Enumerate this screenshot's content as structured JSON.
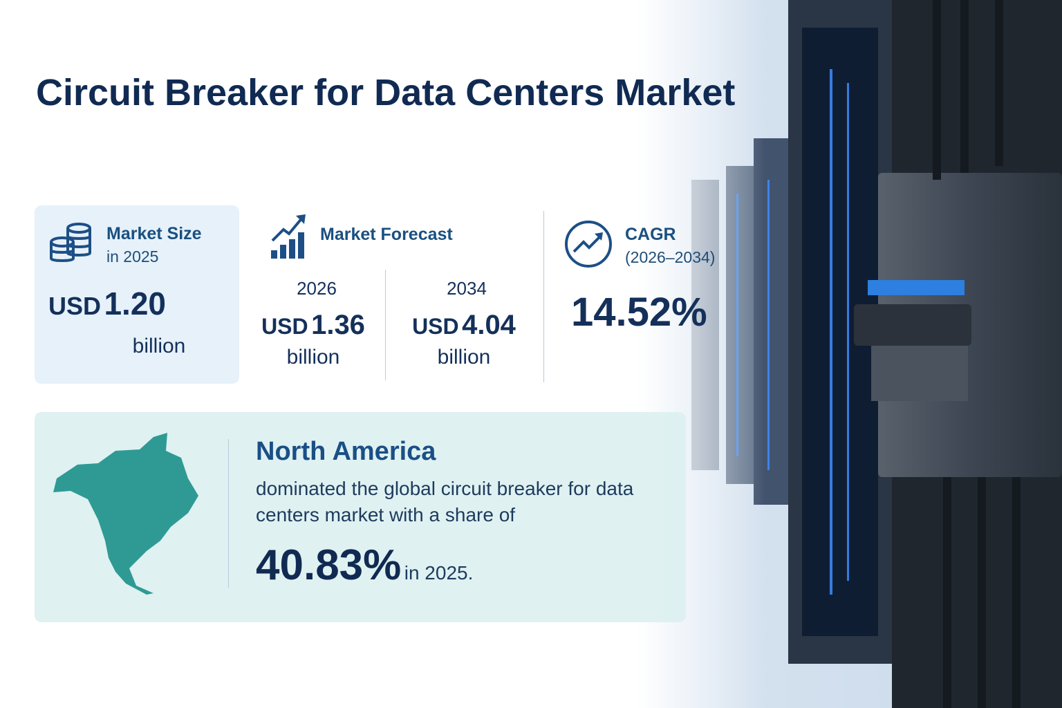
{
  "title": "Circuit Breaker for Data Centers Market",
  "market_size": {
    "label": "Market Size",
    "sublabel": "in 2025",
    "currency": "USD",
    "amount": "1.20",
    "unit": "billion"
  },
  "forecast": {
    "label": "Market Forecast",
    "items": [
      {
        "year": "2026",
        "currency": "USD",
        "amount": "1.36",
        "unit": "billion"
      },
      {
        "year": "2034",
        "currency": "USD",
        "amount": "4.04",
        "unit": "billion"
      }
    ]
  },
  "cagr": {
    "label": "CAGR",
    "period": "(2026–2034)",
    "value": "14.52%"
  },
  "region": {
    "name": "North America",
    "text": "dominated the global circuit breaker for data centers market with a share of",
    "share": "40.83%",
    "suffix": "in 2025."
  }
}
